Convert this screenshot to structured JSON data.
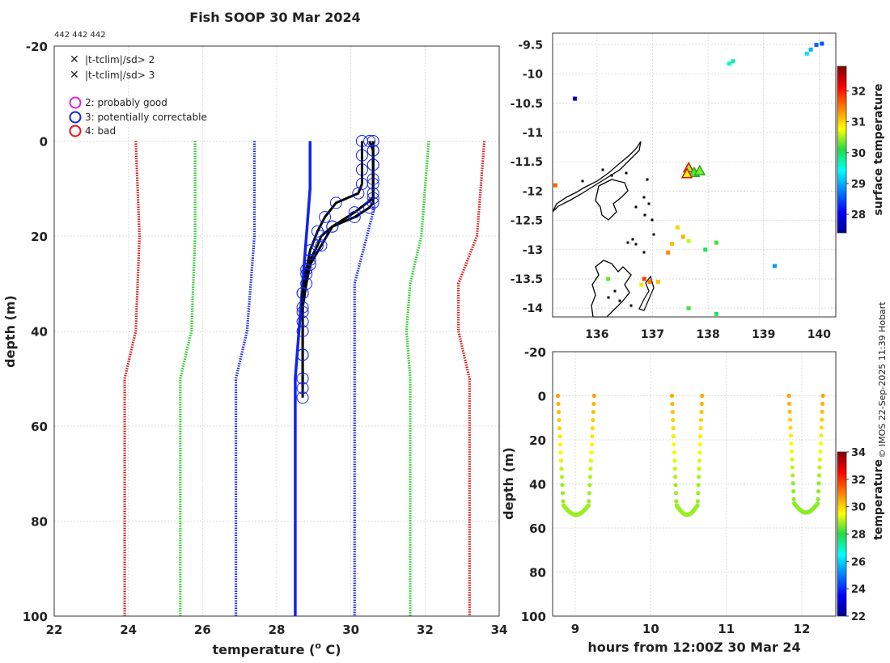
{
  "title": "Fish SOOP 30 Mar 2024",
  "platform_codes": "442 442 442",
  "watermark": "© IMOS 22-Sep-2025 11:39 Hobart",
  "legend": {
    "entries": [
      {
        "label": "|t-tclim|/sd> 2",
        "symbol": "x",
        "color": "#22cc22"
      },
      {
        "label": "|t-tclim|/sd> 3",
        "symbol": "x",
        "color": "#dd1111"
      },
      {
        "label": "2: probably good",
        "symbol": "o",
        "color": "#dd22dd"
      },
      {
        "label": "3: potentially correctable",
        "symbol": "o",
        "color": "#1122ee"
      },
      {
        "label": "4: bad",
        "symbol": "o",
        "color": "#ee1111"
      }
    ]
  },
  "chart_data": [
    {
      "type": "line",
      "id": "profile",
      "xlabel": "temperature (",
      "xlabel_sup": "o",
      "xlabel_end": " C)",
      "ylabel": "depth (m)",
      "xlim": [
        22,
        34
      ],
      "ylim": [
        -20,
        100
      ],
      "x_ticks": [
        "22",
        "24",
        "26",
        "28",
        "30",
        "32",
        "34"
      ],
      "y_ticks": [
        "-20",
        "0",
        "20",
        "40",
        "60",
        "80",
        "100"
      ],
      "climatology_lines": [
        {
          "name": "clim -3sd",
          "color": "#dd1111",
          "depth": [
            0,
            20,
            40,
            50,
            100
          ],
          "temp": [
            24.2,
            24.3,
            24.2,
            23.9,
            23.9
          ]
        },
        {
          "name": "clim -2sd",
          "color": "#22cc22",
          "depth": [
            0,
            20,
            40,
            50,
            100
          ],
          "temp": [
            25.8,
            25.8,
            25.7,
            25.4,
            25.4
          ]
        },
        {
          "name": "clim -1sd",
          "color": "#1122ee",
          "depth": [
            0,
            20,
            40,
            50,
            100
          ],
          "temp": [
            27.4,
            27.4,
            27.2,
            26.9,
            26.9
          ]
        },
        {
          "name": "clim mean",
          "color": "#1122ee",
          "solid": true,
          "depth": [
            0,
            10,
            20,
            40,
            50,
            100
          ],
          "temp": [
            28.9,
            28.9,
            28.8,
            28.6,
            28.5,
            28.5
          ]
        },
        {
          "name": "clim +1sd",
          "color": "#1122ee",
          "depth": [
            0,
            15,
            30,
            40,
            50,
            100
          ],
          "temp": [
            30.6,
            30.6,
            30.1,
            30.1,
            30.1,
            30.1
          ]
        },
        {
          "name": "clim +2sd",
          "color": "#22cc22",
          "depth": [
            0,
            20,
            30,
            40,
            50,
            100
          ],
          "temp": [
            32.1,
            31.9,
            31.6,
            31.5,
            31.6,
            31.6
          ]
        },
        {
          "name": "clim +3sd",
          "color": "#dd1111",
          "depth": [
            0,
            20,
            30,
            40,
            50,
            100
          ],
          "temp": [
            33.6,
            33.4,
            32.9,
            32.9,
            33.2,
            33.2
          ]
        }
      ],
      "profiles": [
        {
          "depth": [
            0,
            2,
            5,
            9,
            12,
            15,
            18,
            22,
            26,
            30,
            35,
            40,
            45,
            50,
            54
          ],
          "temp": [
            30.5,
            30.6,
            30.6,
            30.6,
            30.6,
            30.1,
            29.5,
            29.2,
            28.9,
            28.8,
            28.7,
            28.7,
            28.7,
            28.7,
            28.7
          ]
        },
        {
          "depth": [
            0,
            3,
            6,
            9,
            11,
            13,
            16,
            19,
            23,
            27,
            32,
            38,
            45,
            52
          ],
          "temp": [
            30.3,
            30.3,
            30.3,
            30.3,
            30.2,
            29.6,
            29.3,
            29.1,
            28.9,
            28.8,
            28.7,
            28.7,
            28.7,
            28.7
          ]
        },
        {
          "depth": [
            0,
            2,
            5,
            8,
            11,
            13,
            14,
            16,
            18,
            20,
            22,
            25,
            28,
            32,
            36
          ],
          "temp": [
            30.6,
            30.6,
            30.6,
            30.6,
            30.6,
            30.6,
            30.5,
            30.1,
            29.5,
            29.2,
            29.1,
            28.9,
            28.8,
            28.7,
            28.7
          ]
        }
      ]
    },
    {
      "type": "scatter",
      "id": "map",
      "xlim": [
        135.2,
        140.3
      ],
      "ylim": [
        -14.15,
        -9.3
      ],
      "x_ticks": [
        "136",
        "137",
        "138",
        "139",
        "140"
      ],
      "y_ticks": [
        "-9.5",
        "-10",
        "-10.5",
        "-11",
        "-11.5",
        "-12",
        "-12.5",
        "-13",
        "-13.5",
        "-14"
      ],
      "colorbar_label": "surface temperature",
      "colorbar_range": [
        27.4,
        32.8
      ],
      "colorbar_ticks": [
        "28",
        "29",
        "30",
        "31",
        "32"
      ],
      "points": [
        {
          "lon": 139.95,
          "lat": -9.5,
          "value": 28.6
        },
        {
          "lon": 140.05,
          "lat": -9.48,
          "value": 28.5
        },
        {
          "lon": 139.85,
          "lat": -9.58,
          "value": 29.0
        },
        {
          "lon": 139.78,
          "lat": -9.65,
          "value": 29.3
        },
        {
          "lon": 138.38,
          "lat": -9.82,
          "value": 29.6
        },
        {
          "lon": 138.45,
          "lat": -9.78,
          "value": 29.8
        },
        {
          "lon": 135.6,
          "lat": -10.42,
          "value": 27.6
        },
        {
          "lon": 137.45,
          "lat": -12.62,
          "value": 31.0
        },
        {
          "lon": 137.55,
          "lat": -12.78,
          "value": 31.2
        },
        {
          "lon": 137.35,
          "lat": -12.9,
          "value": 31.1
        },
        {
          "lon": 137.28,
          "lat": -13.05,
          "value": 31.4
        },
        {
          "lon": 137.65,
          "lat": -12.85,
          "value": 30.6
        },
        {
          "lon": 137.95,
          "lat": -13.0,
          "value": 30.0
        },
        {
          "lon": 138.15,
          "lat": -12.88,
          "value": 30.2
        },
        {
          "lon": 136.2,
          "lat": -13.5,
          "value": 30.3
        },
        {
          "lon": 136.85,
          "lat": -13.5,
          "value": 31.8
        },
        {
          "lon": 136.95,
          "lat": -13.55,
          "value": 31.5
        },
        {
          "lon": 137.1,
          "lat": -13.55,
          "value": 31.1
        },
        {
          "lon": 136.8,
          "lat": -13.6,
          "value": 30.9
        },
        {
          "lon": 137.65,
          "lat": -14.0,
          "value": 30.2
        },
        {
          "lon": 138.15,
          "lat": -14.1,
          "value": 30.0
        },
        {
          "lon": 139.2,
          "lat": -13.28,
          "value": 28.9
        },
        {
          "lon": 135.25,
          "lat": -11.9,
          "value": 31.6
        }
      ],
      "triangles": [
        {
          "lon": 137.65,
          "lat": -11.6,
          "value": 30.5,
          "edge": "#dd1111"
        },
        {
          "lon": 137.75,
          "lat": -11.68,
          "value": 30.3,
          "edge": "#22aa22"
        },
        {
          "lon": 137.85,
          "lat": -11.65,
          "value": 30.4,
          "edge": "#22aa22"
        },
        {
          "lon": 137.62,
          "lat": -11.7,
          "value": 30.8,
          "edge": "#dd1111"
        }
      ]
    },
    {
      "type": "scatter",
      "id": "time_depth",
      "xlabel": "hours from 12:00Z 30 Mar 24",
      "ylabel": "depth (m)",
      "xlim": [
        8.7,
        12.45
      ],
      "ylim": [
        -20,
        100
      ],
      "x_ticks": [
        "9",
        "10",
        "11",
        "12"
      ],
      "y_ticks": [
        "-20",
        "0",
        "20",
        "40",
        "60",
        "80",
        "100"
      ],
      "colorbar_label": "temperature",
      "colorbar_range": [
        22,
        34
      ],
      "colorbar_ticks": [
        "22",
        "24",
        "26",
        "28",
        "30",
        "32",
        "34"
      ],
      "casts": [
        {
          "start": 8.77,
          "end": 9.25,
          "surface_temp": 30.6,
          "deep_temp": 28.8,
          "max_depth": 54
        },
        {
          "start": 10.28,
          "end": 10.68,
          "surface_temp": 30.5,
          "deep_temp": 28.8,
          "max_depth": 54
        },
        {
          "start": 11.83,
          "end": 12.28,
          "surface_temp": 30.6,
          "deep_temp": 28.7,
          "max_depth": 53
        }
      ]
    }
  ]
}
